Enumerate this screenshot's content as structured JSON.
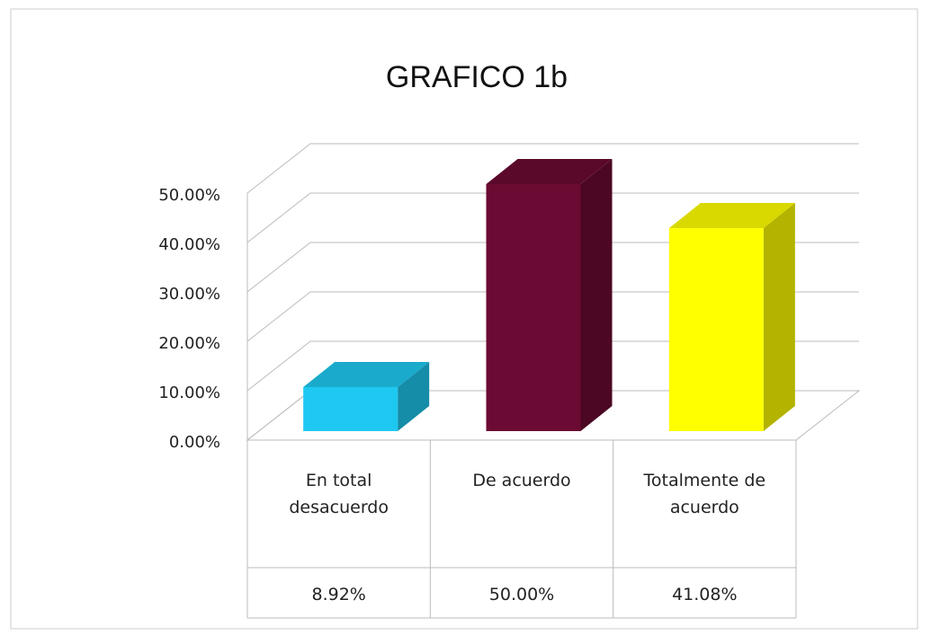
{
  "chart_data": {
    "type": "bar3d",
    "title": "GRAFICO 1b",
    "categories": [
      "En total desacuerdo",
      "De acuerdo",
      "Totalmente de acuerdo"
    ],
    "values": [
      8.92,
      50.0,
      41.08
    ],
    "value_labels": [
      "8.92%",
      "50.00%",
      "41.08%"
    ],
    "colors": [
      "#1ec8f0",
      "#6b0a32",
      "#ffff00"
    ],
    "ylim": [
      0,
      50
    ],
    "yticks": [
      {
        "value": 0,
        "label": "0.00%"
      },
      {
        "value": 10,
        "label": "10.00%"
      },
      {
        "value": 20,
        "label": "20.00%"
      },
      {
        "value": 30,
        "label": "30.00%"
      },
      {
        "value": 40,
        "label": "40.00%"
      },
      {
        "value": 50,
        "label": "50.00%"
      }
    ],
    "grid": true
  }
}
